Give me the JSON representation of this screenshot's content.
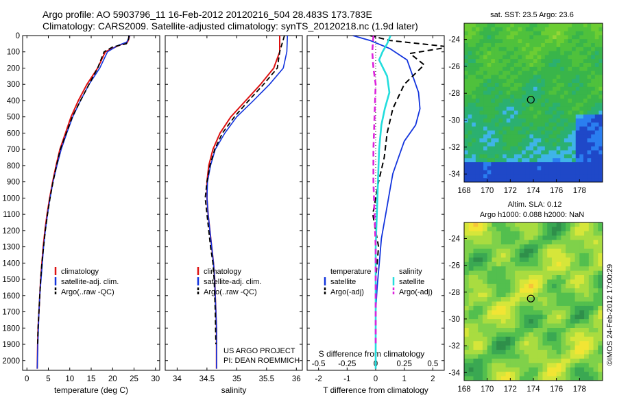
{
  "header": {
    "line1": "Argo profile: AO 5903796_11 16-Feb-2012 20120216_504 28.483S 173.783E",
    "line2": "Climatology: CARS2009. Satellite-adjusted climatology: synTS_20120218.nc (1.9d later)"
  },
  "colors": {
    "climatology": "#dd1111",
    "satellite": "#1133dd",
    "argo": "#000000",
    "salinity_satellite": "#22dddd",
    "salinity_argo": "#dd22dd"
  },
  "chart_data": [
    {
      "type": "line",
      "panel": "temperature",
      "xlabel": "temperature (deg C)",
      "ylabel": "",
      "xlim": [
        -1,
        31
      ],
      "ylim": [
        2060,
        0
      ],
      "xticks": [
        0,
        5,
        10,
        15,
        20,
        25,
        30
      ],
      "yticks": [
        0,
        100,
        200,
        300,
        400,
        500,
        600,
        700,
        800,
        900,
        1000,
        1100,
        1200,
        1300,
        1400,
        1500,
        1600,
        1700,
        1800,
        1900,
        2000
      ],
      "legend": [
        "climatology",
        "satellite-adj. clim.",
        "Argo(..raw -QC)"
      ],
      "series": [
        {
          "name": "climatology",
          "x": [
            24.0,
            23.5,
            21.5,
            18.3,
            16.5,
            14.0,
            12.0,
            10.3,
            9.0,
            7.7,
            6.8,
            6.0,
            5.3,
            4.7,
            4.2,
            3.8,
            3.5,
            3.2,
            3.0,
            2.8,
            2.6,
            2.5,
            2.4
          ],
          "y": [
            0,
            40,
            60,
            100,
            200,
            300,
            400,
            500,
            600,
            700,
            800,
            900,
            1000,
            1100,
            1200,
            1300,
            1400,
            1500,
            1600,
            1700,
            1800,
            1900,
            2050
          ]
        },
        {
          "name": "satellite-adj. clim.",
          "x": [
            24.0,
            23.3,
            21.3,
            18.8,
            17.0,
            14.5,
            12.5,
            10.7,
            9.3,
            8.0,
            7.0,
            6.1,
            5.4,
            4.8,
            4.3,
            3.9,
            3.6,
            3.3,
            3.0,
            2.8,
            2.7,
            2.55,
            2.4
          ],
          "y": [
            0,
            40,
            60,
            100,
            200,
            300,
            400,
            500,
            600,
            700,
            800,
            900,
            1000,
            1100,
            1200,
            1300,
            1400,
            1500,
            1600,
            1700,
            1800,
            1900,
            2050
          ]
        },
        {
          "name": "Argo(..raw -QC)",
          "x": [
            23.8,
            23.7,
            23.2,
            20.0,
            18.0,
            16.5,
            14.5,
            12.5,
            10.6,
            9.2,
            7.8,
            6.9,
            6.1,
            5.4,
            4.8,
            4.3,
            3.9,
            3.5,
            3.2,
            3.0,
            2.8,
            2.6,
            2.5
          ],
          "y": [
            0,
            30,
            50,
            70,
            100,
            200,
            300,
            400,
            500,
            600,
            700,
            800,
            900,
            1000,
            1100,
            1200,
            1300,
            1400,
            1500,
            1600,
            1700,
            1800,
            1900
          ]
        }
      ]
    },
    {
      "type": "line",
      "panel": "salinity",
      "xlabel": "salinity",
      "ylabel": "",
      "xlim": [
        33.8,
        36.1
      ],
      "ylim": [
        2060,
        0
      ],
      "xticks": [
        34,
        34.5,
        35,
        35.5,
        36
      ],
      "legend": [
        "climatology",
        "satellite-adj. clim.",
        "Argo(..raw -QC)"
      ],
      "annotation": [
        "US ARGO PROJECT",
        "PI: DEAN ROEMMICH"
      ],
      "series": [
        {
          "name": "climatology",
          "x": [
            35.72,
            35.72,
            35.62,
            35.4,
            35.15,
            34.9,
            34.72,
            34.6,
            34.53,
            34.5,
            34.5,
            34.52,
            34.55,
            34.58,
            34.61,
            34.63,
            34.64,
            34.65,
            34.66,
            34.66
          ],
          "y": [
            0,
            100,
            200,
            300,
            400,
            500,
            600,
            700,
            800,
            900,
            1000,
            1100,
            1200,
            1300,
            1400,
            1500,
            1600,
            1700,
            1800,
            2050
          ]
        },
        {
          "name": "satellite-adj. clim.",
          "x": [
            35.85,
            35.84,
            35.78,
            35.55,
            35.28,
            35.0,
            34.8,
            34.64,
            34.56,
            34.51,
            34.5,
            34.52,
            34.55,
            34.58,
            34.61,
            34.63,
            34.64,
            34.65,
            34.66,
            34.66
          ],
          "y": [
            0,
            100,
            200,
            300,
            400,
            500,
            600,
            700,
            800,
            900,
            1000,
            1100,
            1200,
            1300,
            1400,
            1500,
            1600,
            1700,
            1800,
            2050
          ]
        },
        {
          "name": "Argo(..raw -QC)",
          "x": [
            35.8,
            35.72,
            35.68,
            35.45,
            35.2,
            34.96,
            34.76,
            34.63,
            34.55,
            34.5,
            34.47,
            34.5,
            34.53,
            34.56,
            34.6,
            34.62,
            34.63,
            34.64,
            34.65
          ],
          "y": [
            0,
            100,
            200,
            300,
            400,
            500,
            600,
            700,
            800,
            900,
            1000,
            1100,
            1200,
            1300,
            1400,
            1500,
            1600,
            1700,
            1900
          ]
        }
      ]
    },
    {
      "type": "line",
      "panel": "difference",
      "xlabel": "T difference from climatology",
      "xlabel_top": "S difference from climatology",
      "xlim": [
        -2.4,
        2.4
      ],
      "ylim": [
        2060,
        0
      ],
      "xticks": [
        -2,
        -1,
        0,
        1,
        2
      ],
      "xtick_labels_top": [
        "-0.5",
        "-0.25",
        "0",
        "0.25",
        "0.5"
      ],
      "legend_groups": {
        "temperature": [
          "satellite",
          "Argo(-adj)"
        ],
        "salinity": [
          "satellite",
          "Argo(-adj)"
        ]
      },
      "series": [
        {
          "name": "temperature satellite",
          "x": [
            -0.8,
            -0.2,
            0.5,
            1.1,
            1.3,
            1.5,
            1.55,
            1.4,
            1.0,
            0.8,
            0.6,
            0.5,
            0.4,
            0.3,
            0.2,
            0.15,
            0.1,
            0.05,
            0.0,
            0.0
          ],
          "y": [
            0,
            30,
            80,
            150,
            250,
            350,
            450,
            550,
            650,
            750,
            850,
            950,
            1050,
            1150,
            1250,
            1350,
            1450,
            1550,
            1700,
            2050
          ]
        },
        {
          "name": "temperature Argo(-adj)",
          "x": [
            -0.2,
            0.5,
            2.6,
            1.2,
            1.7,
            1.0,
            0.6,
            0.4,
            0.3,
            0.1,
            0.0,
            -0.1,
            0.0,
            0.1,
            0.0,
            0.0,
            0.0
          ],
          "y": [
            0,
            30,
            70,
            110,
            180,
            300,
            450,
            600,
            750,
            900,
            1000,
            1100,
            1200,
            1300,
            1500,
            1700,
            1900
          ]
        },
        {
          "name": "salinity satellite",
          "x": [
            0.13,
            0.1,
            0.06,
            0.03,
            0.1,
            0.12,
            0.08,
            0.05,
            0.03,
            0.02,
            0.01,
            0.0,
            0.0,
            0.0
          ],
          "y": [
            0,
            50,
            100,
            150,
            250,
            350,
            450,
            550,
            700,
            900,
            1100,
            1300,
            1600,
            2050
          ]
        },
        {
          "name": "salinity Argo(-adj)",
          "x": [
            -0.02,
            -0.03,
            -0.02,
            0.0,
            -0.01,
            -0.02,
            -0.02,
            -0.01,
            0.0,
            0.0
          ],
          "y": [
            0,
            100,
            200,
            300,
            500,
            700,
            900,
            1100,
            1300,
            1900
          ]
        }
      ]
    },
    {
      "type": "heatmap",
      "panel": "sst-map",
      "title": "sat. SST: 23.5 Argo: 23.6",
      "xticks": [
        168,
        170,
        172,
        174,
        176,
        178
      ],
      "yticks": [
        -24,
        -26,
        -28,
        -30,
        -32,
        -34
      ],
      "xlim": [
        168,
        180
      ],
      "ylim": [
        -34.6,
        -22.8
      ],
      "marker": {
        "lon": 173.78,
        "lat": -28.48
      }
    },
    {
      "type": "heatmap",
      "panel": "sla-map",
      "title": "Altim. SLA: 0.12",
      "subtitle": "Argo h1000: 0.088 h2000: NaN",
      "xticks": [
        168,
        170,
        172,
        174,
        176,
        178
      ],
      "yticks": [
        -24,
        -26,
        -28,
        -30,
        -32,
        -34
      ],
      "xlim": [
        168,
        180
      ],
      "ylim": [
        -34.6,
        -22.8
      ],
      "marker": {
        "lon": 173.78,
        "lat": -28.48
      }
    }
  ],
  "watermark": "©IMOS 24-Feb-2012 17:00:29"
}
